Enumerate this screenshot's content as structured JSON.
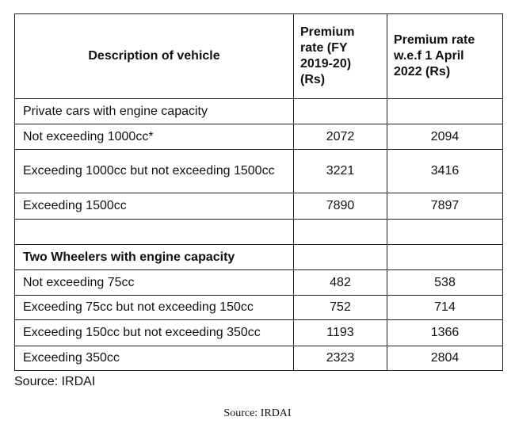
{
  "table": {
    "headers": [
      "Description of vehicle",
      "Premium rate (FY 2019-20) (Rs)",
      "Premium rate w.e.f 1 April 2022 (Rs)"
    ],
    "rows": [
      {
        "desc": "Private cars with engine capacity",
        "fy2019": "",
        "apr2022": "",
        "bold": false
      },
      {
        "desc": "Not exceeding 1000cc*",
        "fy2019": "2072",
        "apr2022": "2094"
      },
      {
        "desc": "Exceeding 1000cc but not exceeding 1500cc",
        "fy2019": "3221",
        "apr2022": "3416"
      },
      {
        "desc": "Exceeding 1500cc",
        "fy2019": "7890",
        "apr2022": "7897"
      },
      {
        "desc": "",
        "fy2019": "",
        "apr2022": ""
      },
      {
        "desc": "Two Wheelers with engine capacity",
        "fy2019": "",
        "apr2022": "",
        "bold": true
      },
      {
        "desc": "Not exceeding 75cc",
        "fy2019": "482",
        "apr2022": "538"
      },
      {
        "desc": "Exceeding 75cc but not exceeding 150cc",
        "fy2019": "752",
        "apr2022": "714"
      },
      {
        "desc": "Exceeding 150cc but not exceeding 350cc",
        "fy2019": "1193",
        "apr2022": "1366"
      },
      {
        "desc": "Exceeding 350cc",
        "fy2019": "2323",
        "apr2022": "2804"
      }
    ]
  },
  "source_inline": "Source: IRDAI",
  "source_caption": "Source: IRDAI"
}
